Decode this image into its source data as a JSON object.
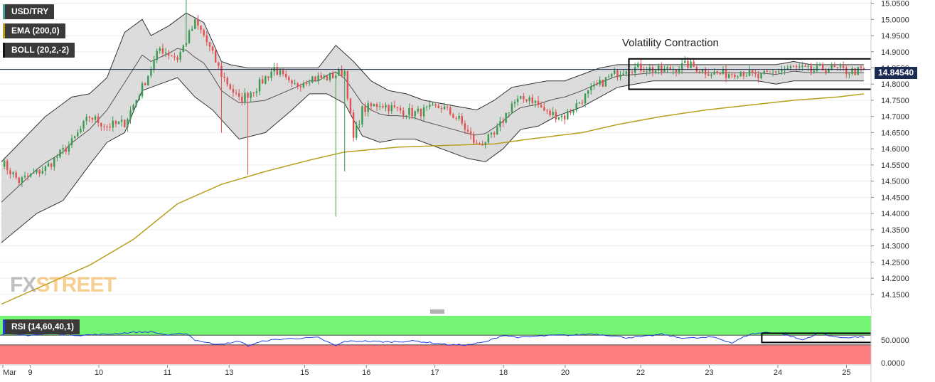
{
  "legend": {
    "symbol": "USD/TRY",
    "ema": "EMA (200,0)",
    "boll": "BOLL (20,2,-2)",
    "rsi": "RSI (14,60,40,1)"
  },
  "colors": {
    "bull": "#3a9a50",
    "bear": "#e05050",
    "ema": "#b5a01e",
    "band_fill": "#d6d6d6",
    "band_line": "#333333",
    "mid_line": "#555555",
    "price_line": "#1a2a52",
    "rsi_line": "#1f3fe0",
    "rsi_upper": "#74f574",
    "rsi_lower": "#fb7d7d"
  },
  "annotation": "Volatility Contraction",
  "watermark": {
    "fx": "FX",
    "street": "STREET"
  },
  "current_price_label": "14.84540",
  "rsi_axis": [
    "50.0000",
    "0.0000"
  ],
  "chart_data": {
    "type": "candlestick",
    "title": "USD/TRY",
    "ylim": [
      14.11,
      15.06
    ],
    "yticks": [
      "15.0500",
      "15.0000",
      "14.9500",
      "14.9000",
      "14.8500",
      "14.8000",
      "14.7500",
      "14.7000",
      "14.6500",
      "14.6000",
      "14.5500",
      "14.5000",
      "14.4500",
      "14.4000",
      "14.3500",
      "14.3000",
      "14.2500",
      "14.2000",
      "14.1500"
    ],
    "xticks": [
      "Mar",
      "9",
      "10",
      "11",
      "13",
      "15",
      "16",
      "17",
      "18",
      "20",
      "22",
      "23",
      "24",
      "25"
    ],
    "current_price": 14.8454,
    "anchors": [
      [
        0,
        14.56
      ],
      [
        2,
        14.5
      ],
      [
        5,
        14.54
      ],
      [
        8,
        14.62
      ],
      [
        10,
        14.7
      ],
      [
        12,
        14.67
      ],
      [
        14,
        14.68
      ],
      [
        16,
        14.79
      ],
      [
        18,
        14.91
      ],
      [
        20,
        14.88
      ],
      [
        22,
        14.99
      ],
      [
        23,
        14.95
      ],
      [
        25,
        14.83
      ],
      [
        27,
        14.75
      ],
      [
        29,
        14.79
      ],
      [
        31,
        14.85
      ],
      [
        33,
        14.79
      ],
      [
        35,
        14.82
      ],
      [
        37,
        14.82
      ],
      [
        39,
        14.84
      ],
      [
        40,
        14.63
      ],
      [
        41,
        14.72
      ],
      [
        43,
        14.74
      ],
      [
        45,
        14.72
      ],
      [
        47,
        14.71
      ],
      [
        50,
        14.73
      ],
      [
        52,
        14.69
      ],
      [
        54,
        14.61
      ],
      [
        56,
        14.64
      ],
      [
        58,
        14.74
      ],
      [
        60,
        14.76
      ],
      [
        62,
        14.71
      ],
      [
        64,
        14.7
      ],
      [
        67,
        14.78
      ],
      [
        69,
        14.82
      ],
      [
        71,
        14.85
      ],
      [
        73,
        14.85
      ],
      [
        75,
        14.84
      ],
      [
        78,
        14.86
      ],
      [
        80,
        14.84
      ],
      [
        82,
        14.83
      ],
      [
        84,
        14.84
      ],
      [
        86,
        14.82
      ],
      [
        88,
        14.84
      ],
      [
        90,
        14.85
      ],
      [
        92,
        14.84
      ],
      [
        94,
        14.85
      ],
      [
        96,
        14.84
      ],
      [
        98,
        14.84
      ]
    ],
    "series": [
      {
        "name": "EMA (200,0)",
        "points": [
          [
            0,
            14.12
          ],
          [
            10,
            14.24
          ],
          [
            15,
            14.32
          ],
          [
            20,
            14.43
          ],
          [
            25,
            14.49
          ],
          [
            30,
            14.53
          ],
          [
            35,
            14.565
          ],
          [
            39,
            14.59
          ],
          [
            45,
            14.605
          ],
          [
            50,
            14.61
          ],
          [
            56,
            14.615
          ],
          [
            60,
            14.63
          ],
          [
            66,
            14.65
          ],
          [
            70,
            14.675
          ],
          [
            75,
            14.7
          ],
          [
            80,
            14.72
          ],
          [
            85,
            14.735
          ],
          [
            90,
            14.75
          ],
          [
            95,
            14.76
          ],
          [
            98,
            14.77
          ]
        ]
      },
      {
        "name": "BOLL (20,2,-2)",
        "upper": [
          [
            0,
            14.56
          ],
          [
            5,
            14.7
          ],
          [
            8,
            14.76
          ],
          [
            10,
            14.77
          ],
          [
            12,
            14.82
          ],
          [
            14,
            14.96
          ],
          [
            16,
            15.0
          ],
          [
            17,
            14.95
          ],
          [
            19,
            14.98
          ],
          [
            21,
            15.02
          ],
          [
            23,
            14.99
          ],
          [
            25,
            14.87
          ],
          [
            26,
            14.86
          ],
          [
            28,
            14.85
          ],
          [
            30,
            14.85
          ],
          [
            33,
            14.85
          ],
          [
            36,
            14.85
          ],
          [
            38,
            14.92
          ],
          [
            40,
            14.87
          ],
          [
            42,
            14.81
          ],
          [
            44,
            14.78
          ],
          [
            46,
            14.77
          ],
          [
            48,
            14.75
          ],
          [
            50,
            14.74
          ],
          [
            52,
            14.73
          ],
          [
            54,
            14.72
          ],
          [
            56,
            14.75
          ],
          [
            58,
            14.79
          ],
          [
            60,
            14.8
          ],
          [
            62,
            14.81
          ],
          [
            64,
            14.81
          ],
          [
            66,
            14.83
          ],
          [
            68,
            14.85
          ],
          [
            70,
            14.86
          ],
          [
            72,
            14.86
          ],
          [
            74,
            14.86
          ],
          [
            76,
            14.86
          ],
          [
            78,
            14.86
          ],
          [
            80,
            14.86
          ],
          [
            82,
            14.86
          ],
          [
            84,
            14.86
          ],
          [
            86,
            14.86
          ],
          [
            88,
            14.86
          ],
          [
            90,
            14.87
          ],
          [
            92,
            14.86
          ],
          [
            94,
            14.86
          ],
          [
            96,
            14.86
          ],
          [
            98,
            14.86
          ]
        ],
        "lower": [
          [
            0,
            14.31
          ],
          [
            4,
            14.4
          ],
          [
            7,
            14.44
          ],
          [
            10,
            14.55
          ],
          [
            12,
            14.62
          ],
          [
            14,
            14.65
          ],
          [
            16,
            14.78
          ],
          [
            18,
            14.8
          ],
          [
            20,
            14.82
          ],
          [
            22,
            14.76
          ],
          [
            24,
            14.72
          ],
          [
            26,
            14.66
          ],
          [
            27,
            14.63
          ],
          [
            30,
            14.65
          ],
          [
            33,
            14.72
          ],
          [
            35,
            14.77
          ],
          [
            37,
            14.77
          ],
          [
            39,
            14.74
          ],
          [
            41,
            14.64
          ],
          [
            43,
            14.62
          ],
          [
            45,
            14.63
          ],
          [
            47,
            14.63
          ],
          [
            49,
            14.61
          ],
          [
            51,
            14.59
          ],
          [
            53,
            14.57
          ],
          [
            55,
            14.56
          ],
          [
            57,
            14.6
          ],
          [
            59,
            14.66
          ],
          [
            61,
            14.67
          ],
          [
            63,
            14.7
          ],
          [
            66,
            14.73
          ],
          [
            68,
            14.76
          ],
          [
            70,
            14.79
          ],
          [
            72,
            14.8
          ],
          [
            74,
            14.81
          ],
          [
            76,
            14.81
          ],
          [
            78,
            14.81
          ],
          [
            80,
            14.81
          ],
          [
            82,
            14.81
          ],
          [
            84,
            14.81
          ],
          [
            86,
            14.81
          ],
          [
            88,
            14.8
          ],
          [
            90,
            14.81
          ],
          [
            92,
            14.81
          ],
          [
            94,
            14.81
          ],
          [
            96,
            14.81
          ],
          [
            98,
            14.81
          ]
        ]
      }
    ],
    "spikes": [
      [
        21,
        15.06
      ],
      [
        28,
        14.52
      ],
      [
        38,
        14.39
      ],
      [
        39,
        14.53
      ],
      [
        25,
        14.65
      ]
    ],
    "rsi": {
      "ylim": [
        0,
        100
      ],
      "upper_level": 60,
      "lower_level": 40,
      "anchors": [
        [
          0,
          62
        ],
        [
          3,
          60
        ],
        [
          6,
          63
        ],
        [
          9,
          60
        ],
        [
          12,
          62
        ],
        [
          15,
          66
        ],
        [
          17,
          67
        ],
        [
          19,
          60
        ],
        [
          21,
          64
        ],
        [
          22,
          50
        ],
        [
          24,
          42
        ],
        [
          26,
          43
        ],
        [
          27,
          48
        ],
        [
          28,
          38
        ],
        [
          30,
          49
        ],
        [
          32,
          52
        ],
        [
          34,
          54
        ],
        [
          36,
          55
        ],
        [
          38,
          38
        ],
        [
          39,
          47
        ],
        [
          41,
          48
        ],
        [
          44,
          46
        ],
        [
          47,
          48
        ],
        [
          49,
          44
        ],
        [
          51,
          40
        ],
        [
          53,
          40
        ],
        [
          55,
          46
        ],
        [
          57,
          60
        ],
        [
          59,
          55
        ],
        [
          61,
          58
        ],
        [
          63,
          60
        ],
        [
          65,
          60
        ],
        [
          67,
          63
        ],
        [
          69,
          60
        ],
        [
          71,
          55
        ],
        [
          73,
          57
        ],
        [
          75,
          62
        ],
        [
          77,
          55
        ],
        [
          79,
          54
        ],
        [
          81,
          56
        ],
        [
          83,
          44
        ],
        [
          85,
          62
        ],
        [
          87,
          66
        ],
        [
          89,
          62
        ],
        [
          91,
          50
        ],
        [
          93,
          65
        ],
        [
          95,
          55
        ],
        [
          97,
          56
        ],
        [
          98,
          56
        ]
      ]
    }
  }
}
